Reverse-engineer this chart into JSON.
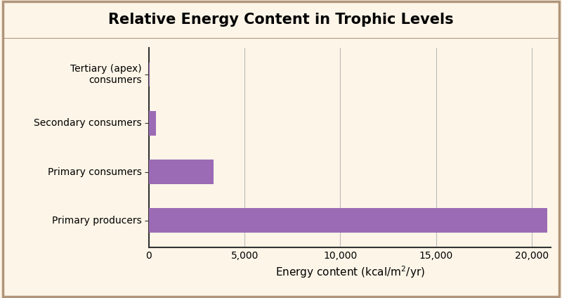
{
  "title": "Relative Energy Content in Trophic Levels",
  "xlabel": "Energy content (kcal/m$^2$/yr)",
  "categories": [
    "Primary producers",
    "Primary consumers",
    "Secondary consumers",
    "Tertiary (apex)\nconsumers"
  ],
  "values": [
    20810,
    3368,
    383,
    21
  ],
  "bar_color": "#9b6bb5",
  "background_color": "#fdf5e8",
  "title_background": "#f5a86a",
  "plot_background": "#fdf5e8",
  "grid_color": "#bbbbbb",
  "spine_color": "#333333",
  "xlim": [
    0,
    21000
  ],
  "xticks": [
    0,
    5000,
    10000,
    15000,
    20000
  ],
  "xticklabels": [
    "0",
    "5,000",
    "10,000",
    "15,000",
    "20,000"
  ],
  "title_fontsize": 15,
  "label_fontsize": 11,
  "tick_fontsize": 10,
  "bar_height": 0.5
}
